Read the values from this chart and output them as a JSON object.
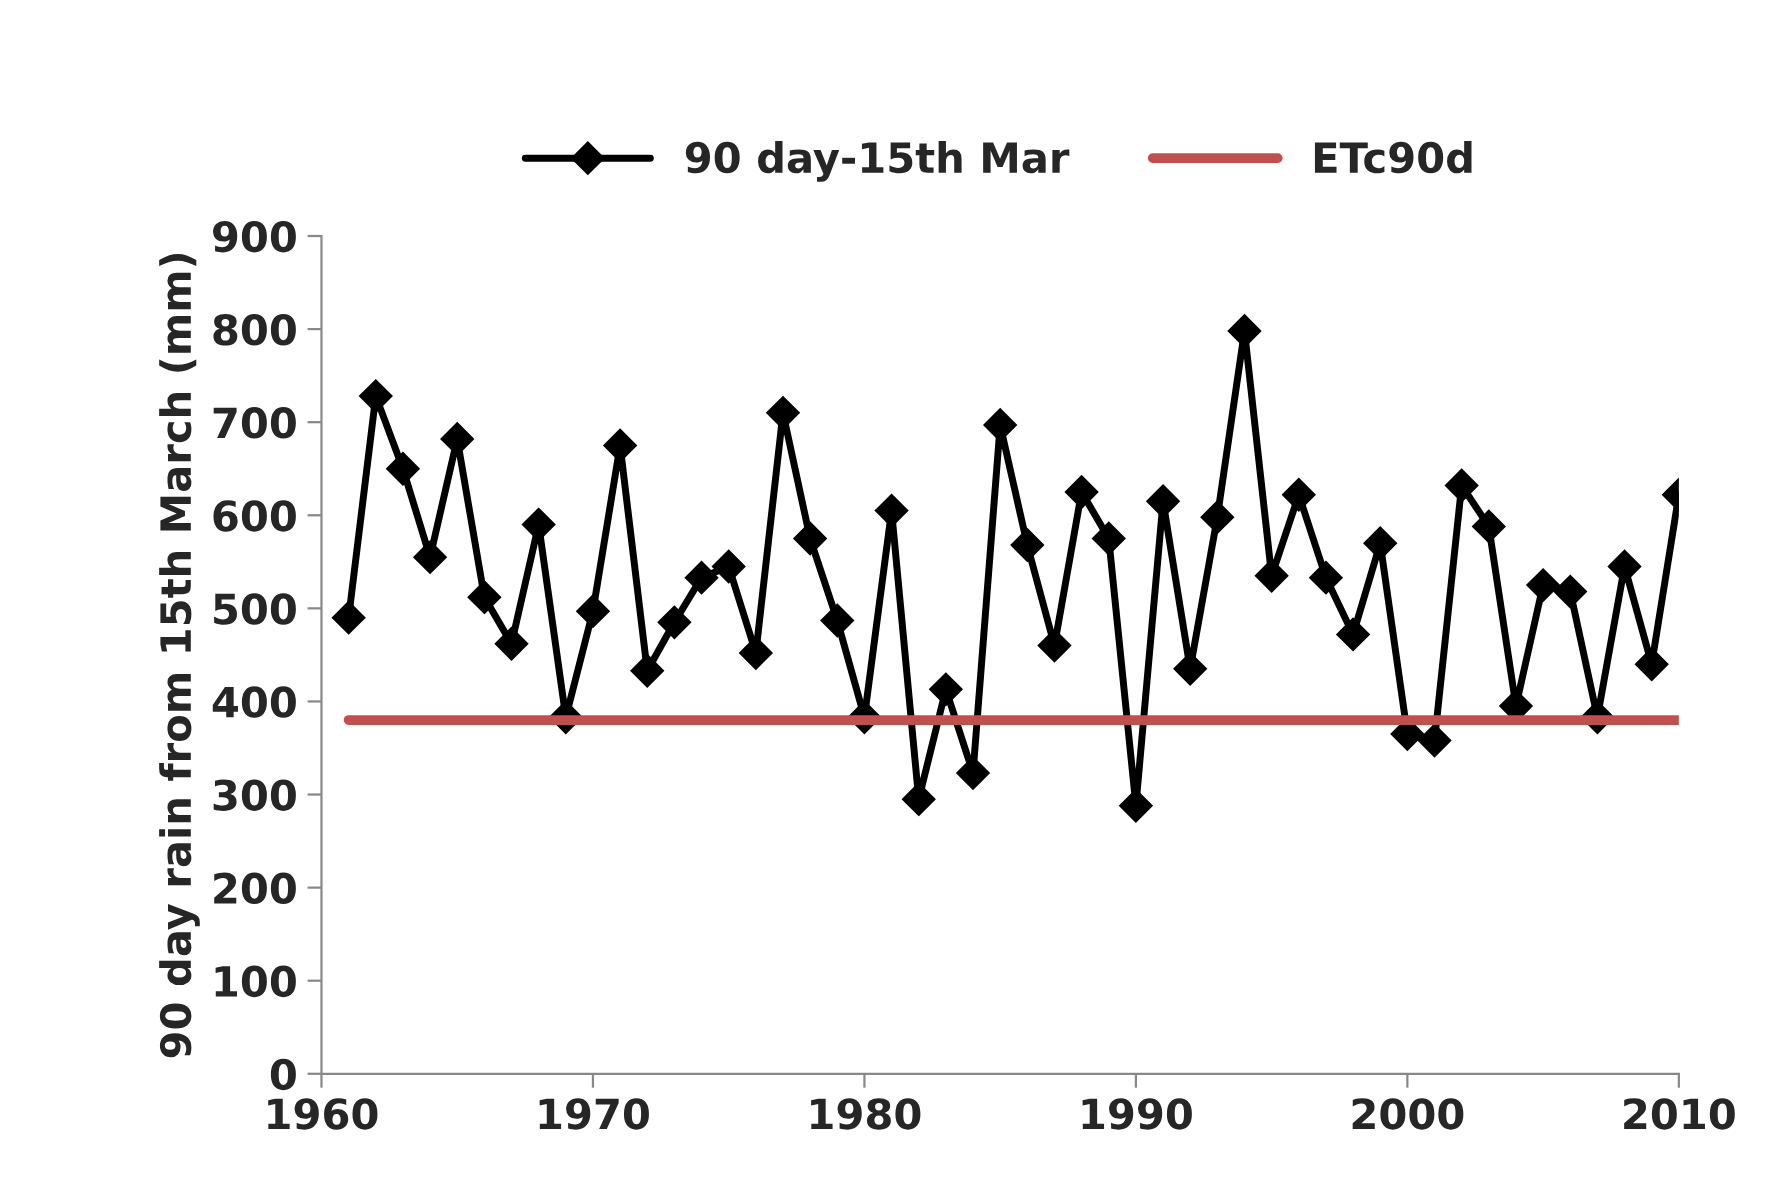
{
  "chart_data": {
    "type": "line",
    "ylabel": "90 day rain from 15th March (mm)",
    "x": [
      1961,
      1962,
      1963,
      1964,
      1965,
      1966,
      1967,
      1968,
      1969,
      1970,
      1971,
      1972,
      1973,
      1974,
      1975,
      1976,
      1977,
      1978,
      1979,
      1980,
      1981,
      1982,
      1983,
      1984,
      1985,
      1986,
      1987,
      1988,
      1989,
      1990,
      1991,
      1992,
      1993,
      1994,
      1995,
      1996,
      1997,
      1998,
      1999,
      2000,
      2001,
      2002,
      2003,
      2004,
      2005,
      2006,
      2007,
      2008,
      2009,
      2010
    ],
    "series": [
      {
        "name": "90 day-15th Mar",
        "color": "#000000",
        "marker": "diamond",
        "values": [
          490,
          728,
          650,
          555,
          682,
          512,
          462,
          590,
          383,
          497,
          675,
          433,
          485,
          533,
          545,
          452,
          710,
          575,
          487,
          383,
          605,
          295,
          413,
          323,
          697,
          568,
          460,
          625,
          575,
          288,
          615,
          435,
          598,
          798,
          535,
          622,
          533,
          472,
          570,
          365,
          358,
          632,
          588,
          395,
          525,
          518,
          383,
          545,
          440,
          622
        ]
      },
      {
        "name": "ETc90d",
        "color": "#c0504d",
        "marker": "none",
        "x": [
          1961,
          2010
        ],
        "values": [
          380,
          380
        ]
      }
    ],
    "xlim": [
      1960,
      2010
    ],
    "xticks": [
      1960,
      1970,
      1980,
      1990,
      2000,
      2010
    ],
    "ylim": [
      0,
      900
    ],
    "yticks": [
      0,
      100,
      200,
      300,
      400,
      500,
      600,
      700,
      800,
      900
    ],
    "grid": false,
    "legend": "top"
  }
}
